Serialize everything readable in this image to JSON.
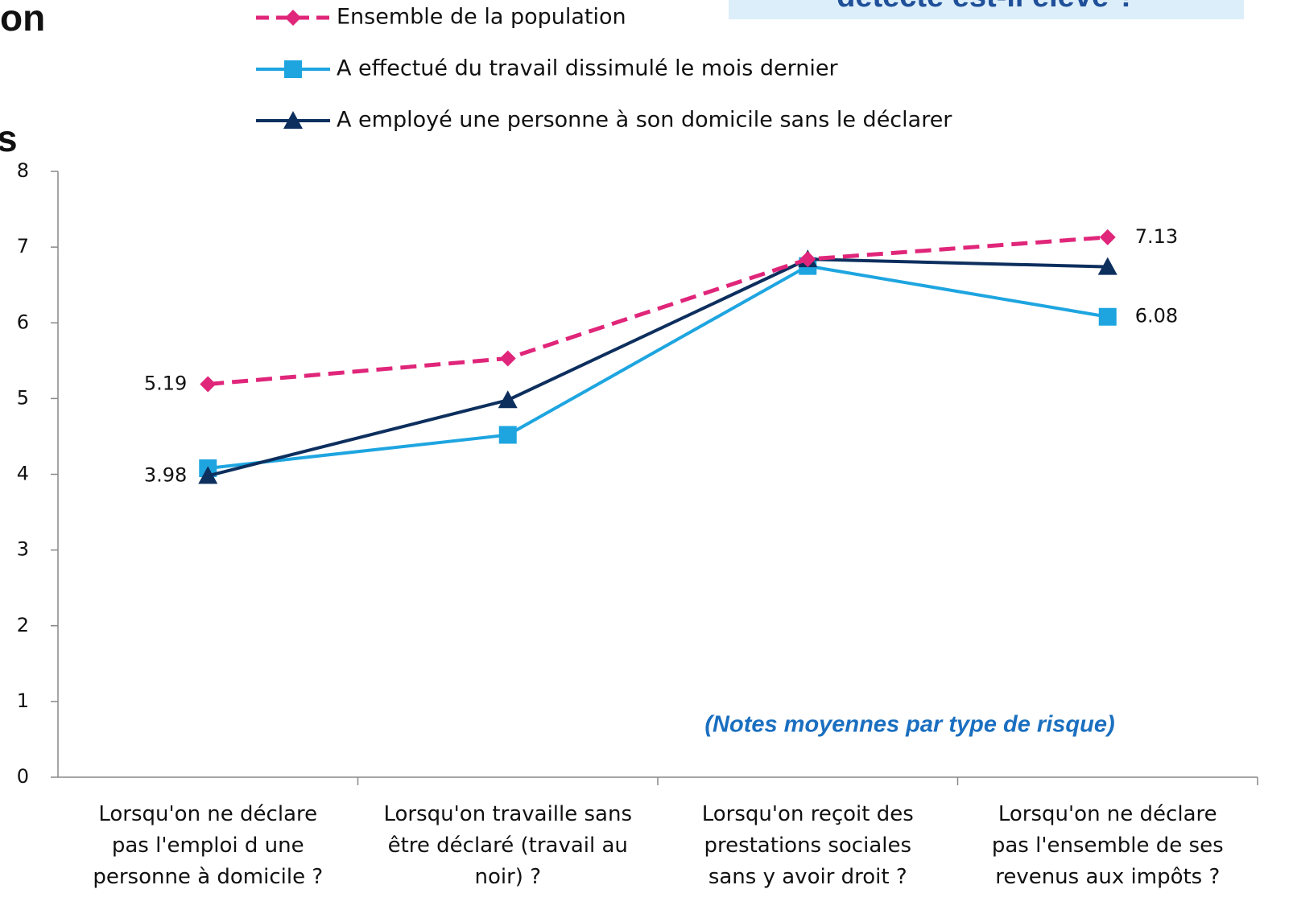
{
  "header": {
    "title_fragments": [
      "on",
      "s"
    ],
    "box_text": "détecté est-il élevé ?"
  },
  "chart_data": {
    "type": "line",
    "categories": [
      "Lorsqu'on ne déclare\npas l'emploi d une\npersonne à domicile ?",
      "Lorsqu'on travaille sans\nêtre déclaré (travail au\nnoir) ?",
      "Lorsqu'on reçoit des\nprestations sociales\nsans y avoir droit ?",
      "Lorsqu'on ne déclare\npas l'ensemble de ses\nrevenus aux impôts ?"
    ],
    "series": [
      {
        "name": "Ensemble de la population",
        "color": "#e0267a",
        "marker": "diamond",
        "dashed": true,
        "values": [
          5.19,
          5.53,
          6.84,
          7.13
        ],
        "value_labels": [
          "5.19",
          null,
          null,
          "7.13"
        ]
      },
      {
        "name": "A effectué du travail dissimulé le mois dernier",
        "color": "#1ea5e0",
        "marker": "square",
        "dashed": false,
        "values": [
          4.08,
          4.52,
          6.75,
          6.08
        ],
        "value_labels": [
          null,
          null,
          null,
          "6.08"
        ]
      },
      {
        "name": "A employé une personne à son domicile sans le déclarer",
        "color": "#0d2f5e",
        "marker": "triangle",
        "dashed": false,
        "values": [
          3.98,
          4.98,
          6.84,
          6.74
        ],
        "value_labels": [
          "3.98",
          null,
          null,
          null
        ]
      }
    ],
    "ylim": [
      0,
      8
    ],
    "yticks": [
      0,
      1,
      2,
      3,
      4,
      5,
      6,
      7,
      8
    ],
    "annotation": "(Notes moyennes par type de risque)"
  }
}
